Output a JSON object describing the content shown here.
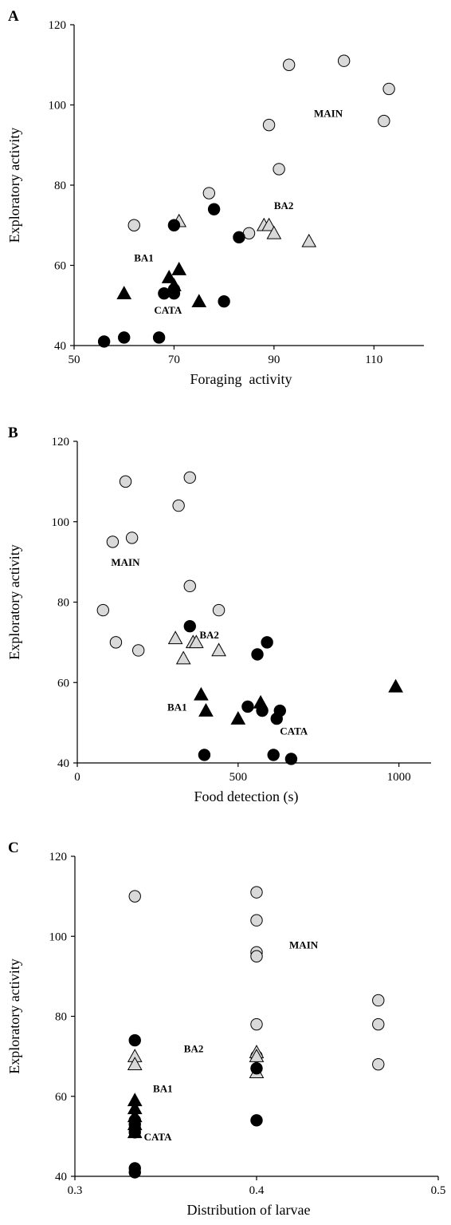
{
  "colors": {
    "MAIN": "#d9d9d9",
    "BA2": "#d9d9d9",
    "BA1": "#000000",
    "CATA": "#000000",
    "stroke": "#000000"
  },
  "chart_data": [
    {
      "type": "scatter",
      "panel_label": "A",
      "xlabel": "Foraging  activity",
      "ylabel": "Exploratory activity",
      "xlim": [
        50,
        120
      ],
      "ylim": [
        40,
        120
      ],
      "xticks": [
        50,
        70,
        90,
        110
      ],
      "yticks": [
        40,
        60,
        80,
        100,
        120
      ],
      "grid": false,
      "group_labels": [
        {
          "text": "MAIN",
          "x": 98,
          "y": 97
        },
        {
          "text": "BA2",
          "x": 90,
          "y": 74
        },
        {
          "text": "BA1",
          "x": 62,
          "y": 61
        },
        {
          "text": "CATA",
          "x": 66,
          "y": 48
        }
      ],
      "series": [
        {
          "name": "MAIN",
          "marker": "circle",
          "fill": "#d9d9d9",
          "points": [
            [
              93,
              110
            ],
            [
              104,
              111
            ],
            [
              113,
              104
            ],
            [
              112,
              96
            ],
            [
              89,
              95
            ],
            [
              91,
              84
            ],
            [
              77,
              78
            ],
            [
              62,
              70
            ],
            [
              85,
              68
            ]
          ]
        },
        {
          "name": "BA2",
          "marker": "triangle",
          "fill": "#d9d9d9",
          "points": [
            [
              71,
              71
            ],
            [
              88,
              70
            ],
            [
              89,
              70
            ],
            [
              90,
              68
            ],
            [
              97,
              66
            ]
          ]
        },
        {
          "name": "BA1",
          "marker": "triangle",
          "fill": "#000000",
          "points": [
            [
              60,
              53
            ],
            [
              69,
              57
            ],
            [
              71,
              59
            ],
            [
              75,
              51
            ],
            [
              70,
              55
            ]
          ]
        },
        {
          "name": "CATA",
          "marker": "circle",
          "fill": "#000000",
          "points": [
            [
              70,
              70
            ],
            [
              78,
              74
            ],
            [
              83,
              67
            ],
            [
              68,
              53
            ],
            [
              70,
              54
            ],
            [
              70,
              53
            ],
            [
              80,
              51
            ],
            [
              56,
              41
            ],
            [
              60,
              42
            ],
            [
              67,
              42
            ]
          ]
        }
      ]
    },
    {
      "type": "scatter",
      "panel_label": "B",
      "xlabel": "Food detection (s)",
      "ylabel": "Exploratory activity",
      "xlim": [
        0,
        1100
      ],
      "ylim": [
        40,
        120
      ],
      "xticks": [
        0,
        500,
        1000
      ],
      "yticks": [
        40,
        60,
        80,
        100,
        120
      ],
      "grid": false,
      "group_labels": [
        {
          "text": "MAIN",
          "x": 105,
          "y": 89
        },
        {
          "text": "BA2",
          "x": 380,
          "y": 71
        },
        {
          "text": "BA1",
          "x": 280,
          "y": 53
        },
        {
          "text": "CATA",
          "x": 630,
          "y": 47
        }
      ],
      "series": [
        {
          "name": "MAIN",
          "marker": "circle",
          "fill": "#d9d9d9",
          "points": [
            [
              150,
              110
            ],
            [
              350,
              111
            ],
            [
              315,
              104
            ],
            [
              110,
              95
            ],
            [
              170,
              96
            ],
            [
              350,
              84
            ],
            [
              80,
              78
            ],
            [
              440,
              78
            ],
            [
              120,
              70
            ],
            [
              190,
              68
            ]
          ]
        },
        {
          "name": "BA2",
          "marker": "triangle",
          "fill": "#d9d9d9",
          "points": [
            [
              305,
              71
            ],
            [
              360,
              70
            ],
            [
              370,
              70
            ],
            [
              330,
              66
            ],
            [
              440,
              68
            ]
          ]
        },
        {
          "name": "BA1",
          "marker": "triangle",
          "fill": "#000000",
          "points": [
            [
              385,
              57
            ],
            [
              400,
              53
            ],
            [
              500,
              51
            ],
            [
              570,
              55
            ],
            [
              990,
              59
            ]
          ]
        },
        {
          "name": "CATA",
          "marker": "circle",
          "fill": "#000000",
          "points": [
            [
              350,
              74
            ],
            [
              590,
              70
            ],
            [
              560,
              67
            ],
            [
              530,
              54
            ],
            [
              575,
              53
            ],
            [
              630,
              53
            ],
            [
              620,
              51
            ],
            [
              395,
              42
            ],
            [
              610,
              42
            ],
            [
              665,
              41
            ]
          ]
        }
      ]
    },
    {
      "type": "scatter",
      "panel_label": "C",
      "xlabel": "Distribution of larvae",
      "ylabel": "Exploratory activity",
      "xlim": [
        0.3,
        0.5
      ],
      "ylim": [
        40,
        120
      ],
      "xticks": [
        0.3,
        0.4,
        0.5
      ],
      "yticks": [
        40,
        60,
        80,
        100,
        120
      ],
      "grid": false,
      "group_labels": [
        {
          "text": "MAIN",
          "x": 0.418,
          "y": 97
        },
        {
          "text": "BA2",
          "x": 0.36,
          "y": 71
        },
        {
          "text": "BA1",
          "x": 0.343,
          "y": 61
        },
        {
          "text": "CATA",
          "x": 0.338,
          "y": 49
        }
      ],
      "series": [
        {
          "name": "MAIN",
          "marker": "circle",
          "fill": "#d9d9d9",
          "points": [
            [
              0.333,
              110
            ],
            [
              0.4,
              111
            ],
            [
              0.4,
              104
            ],
            [
              0.4,
              96
            ],
            [
              0.4,
              95
            ],
            [
              0.467,
              84
            ],
            [
              0.4,
              78
            ],
            [
              0.467,
              78
            ],
            [
              0.4,
              70
            ],
            [
              0.467,
              68
            ]
          ]
        },
        {
          "name": "BA2",
          "marker": "triangle",
          "fill": "#d9d9d9",
          "points": [
            [
              0.333,
              70
            ],
            [
              0.333,
              68
            ],
            [
              0.4,
              71
            ],
            [
              0.4,
              70
            ],
            [
              0.4,
              66
            ]
          ]
        },
        {
          "name": "BA1",
          "marker": "triangle",
          "fill": "#000000",
          "points": [
            [
              0.333,
              59
            ],
            [
              0.333,
              57
            ],
            [
              0.333,
              55
            ],
            [
              0.333,
              53
            ],
            [
              0.333,
              51
            ]
          ]
        },
        {
          "name": "CATA",
          "marker": "circle",
          "fill": "#000000",
          "points": [
            [
              0.333,
              74
            ],
            [
              0.4,
              67
            ],
            [
              0.4,
              54
            ],
            [
              0.333,
              54
            ],
            [
              0.333,
              53
            ],
            [
              0.333,
              52
            ],
            [
              0.333,
              51
            ],
            [
              0.333,
              42
            ],
            [
              0.333,
              41
            ]
          ]
        }
      ]
    }
  ]
}
